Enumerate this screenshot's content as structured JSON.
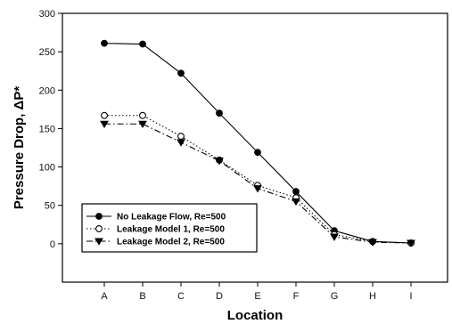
{
  "chart_data": {
    "type": "line",
    "title": "",
    "xlabel": "Location",
    "ylabel": "Pressure Drop, ΔP*",
    "categories": [
      "A",
      "B",
      "C",
      "D",
      "E",
      "F",
      "G",
      "H",
      "I"
    ],
    "ylim": [
      -50,
      300
    ],
    "yticks": [
      0,
      50,
      100,
      150,
      200,
      250,
      300
    ],
    "grid": false,
    "legend_position": "bottom-left",
    "series": [
      {
        "name": "No Leakage Flow, Re=500",
        "marker": "filled-circle",
        "line_style": "solid",
        "values": [
          261,
          260,
          222,
          170,
          119,
          68,
          17,
          3,
          1
        ]
      },
      {
        "name": "Leakage Model 1, Re=500",
        "marker": "open-circle",
        "line_style": "dotted",
        "values": [
          167,
          167,
          140,
          109,
          76,
          60,
          12,
          3,
          1
        ]
      },
      {
        "name": "Leakage Model 2, Re=500",
        "marker": "filled-triangle-down",
        "line_style": "dash-dot",
        "values": [
          156,
          156,
          132,
          108,
          72,
          55,
          9,
          2,
          1
        ]
      }
    ],
    "colors": {
      "line": "#000000",
      "background": "#ffffff"
    }
  }
}
